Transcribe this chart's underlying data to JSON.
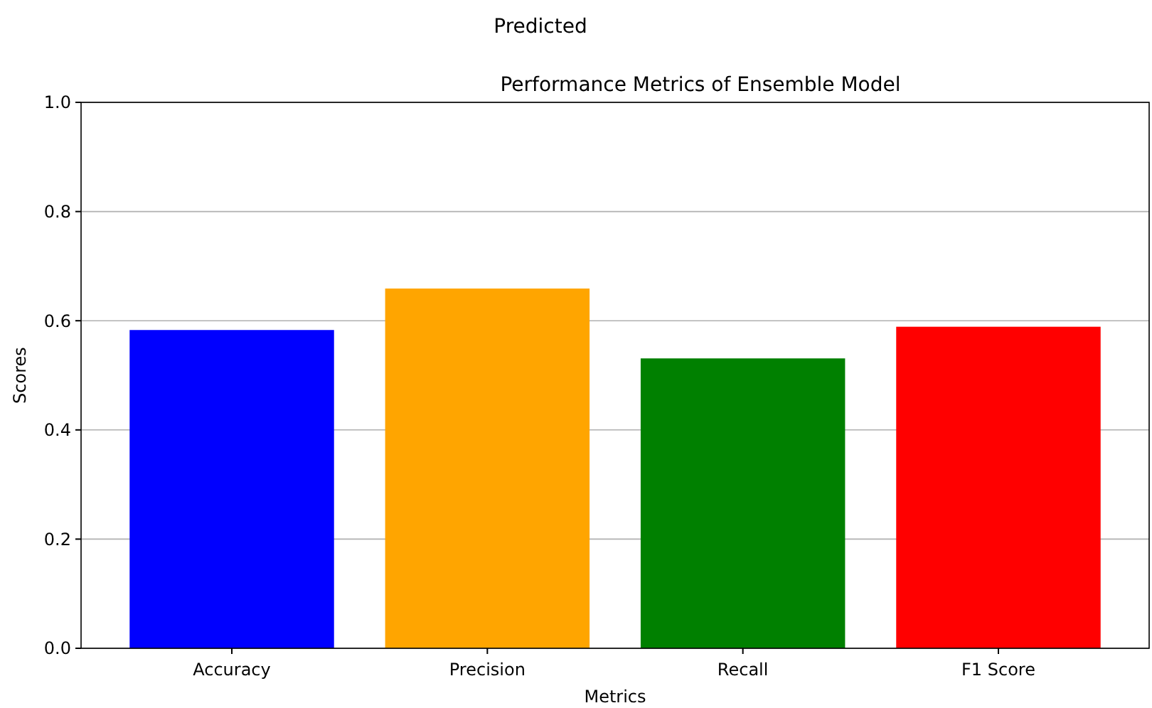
{
  "chart_data": {
    "type": "bar",
    "title": "Performance Metrics of Ensemble Model",
    "annotations": [
      "Predicted"
    ],
    "xlabel": "Metrics",
    "ylabel": "Scores",
    "categories": [
      "Accuracy",
      "Precision",
      "Recall",
      "F1 Score"
    ],
    "values": [
      0.583,
      0.659,
      0.531,
      0.589
    ],
    "colors": [
      "#0000ff",
      "#ffa500",
      "#008000",
      "#ff0000"
    ],
    "ylim": [
      0,
      1
    ],
    "yticks": [
      {
        "value": 0,
        "label": "0.0"
      },
      {
        "value": 0.2,
        "label": "0.2"
      },
      {
        "value": 0.4,
        "label": "0.4"
      },
      {
        "value": 0.6,
        "label": "0.6"
      },
      {
        "value": 0.8,
        "label": "0.8"
      },
      {
        "value": 1,
        "label": "1.0"
      }
    ],
    "grid": "y"
  }
}
